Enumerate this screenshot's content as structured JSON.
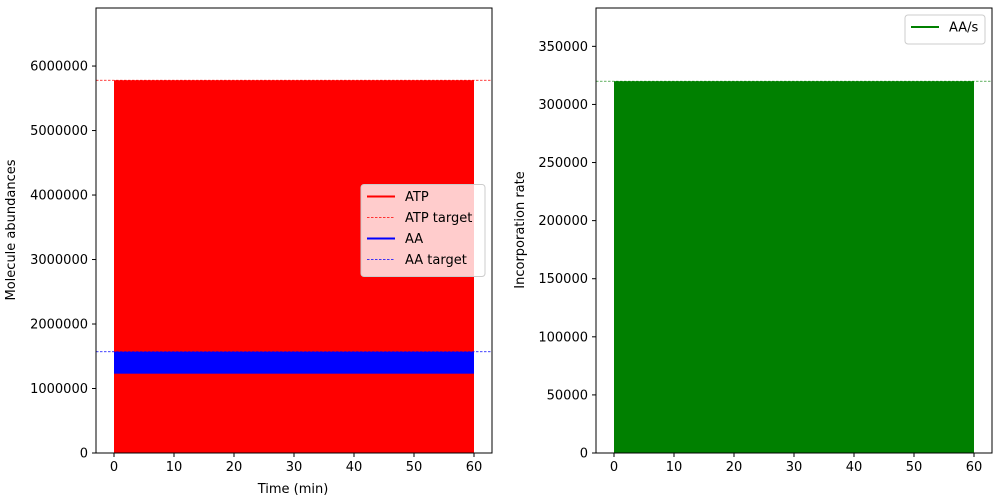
{
  "chart_data": [
    {
      "type": "line",
      "title": "",
      "xlabel": "Time (min)",
      "ylabel": "Molecule abundances",
      "xlim": [
        -3,
        63
      ],
      "ylim": [
        0,
        6900000
      ],
      "xticks": [
        0,
        10,
        20,
        30,
        40,
        50,
        60
      ],
      "yticks": [
        0,
        1000000,
        2000000,
        3000000,
        4000000,
        5000000,
        6000000
      ],
      "grid": false,
      "legend_position": "center-right",
      "series": [
        {
          "name": "ATP",
          "style": "solid",
          "color": "#ff0000",
          "x": [
            0,
            60
          ],
          "y_band": [
            0,
            5780000
          ]
        },
        {
          "name": "ATP target",
          "style": "dashed",
          "color": "#ff0000",
          "y": 5780000
        },
        {
          "name": "AA",
          "style": "solid",
          "color": "#0000ff",
          "x": [
            0,
            60
          ],
          "y_band": [
            1230000,
            1570000
          ]
        },
        {
          "name": "AA target",
          "style": "dashed",
          "color": "#0000ff",
          "y": 1570000
        }
      ]
    },
    {
      "type": "line",
      "title": "",
      "xlabel": "",
      "ylabel": "Incorporation rate",
      "xlim": [
        -3,
        63
      ],
      "ylim": [
        0,
        383000
      ],
      "xticks": [
        0,
        10,
        20,
        30,
        40,
        50,
        60
      ],
      "yticks": [
        0,
        50000,
        100000,
        150000,
        200000,
        250000,
        300000,
        350000
      ],
      "grid": false,
      "legend_position": "upper-right",
      "series": [
        {
          "name": "AA/s",
          "style": "solid",
          "color": "#008000",
          "x": [
            0,
            60
          ],
          "y_band": [
            0,
            320000
          ]
        }
      ],
      "reference_lines": [
        {
          "style": "dashed",
          "color": "#008000",
          "y": 320000
        }
      ]
    }
  ]
}
